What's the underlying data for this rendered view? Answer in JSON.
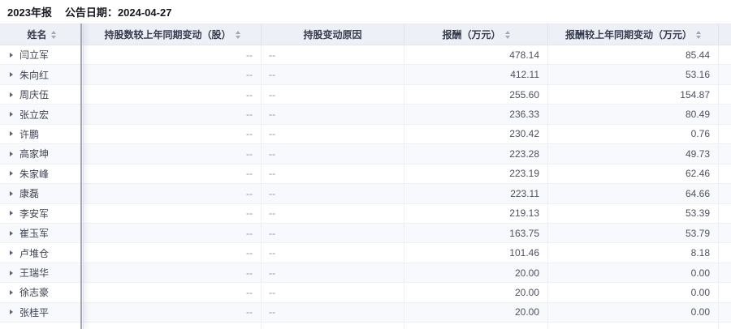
{
  "title": {
    "report": "2023年报",
    "announce_label": "公告日期：",
    "announce_date": "2024-04-27"
  },
  "table": {
    "placeholder": "--",
    "columns": [
      {
        "label": "姓名",
        "sortable": true
      },
      {
        "label": "持股数较上年同期变动（股）",
        "sortable": true
      },
      {
        "label": "持股变动原因",
        "sortable": false
      },
      {
        "label": "报酬（万元）",
        "sortable": true
      },
      {
        "label": "报酬较上年同期变动（万元）",
        "sortable": true
      }
    ],
    "rows": [
      {
        "name": "闫立军",
        "share_change": "--",
        "change_reason": "--",
        "pay": "478.14",
        "pay_change": "85.44"
      },
      {
        "name": "朱向红",
        "share_change": "--",
        "change_reason": "--",
        "pay": "412.11",
        "pay_change": "53.16"
      },
      {
        "name": "周庆伍",
        "share_change": "--",
        "change_reason": "--",
        "pay": "255.60",
        "pay_change": "154.87"
      },
      {
        "name": "张立宏",
        "share_change": "--",
        "change_reason": "--",
        "pay": "236.33",
        "pay_change": "80.49"
      },
      {
        "name": "许鹏",
        "share_change": "--",
        "change_reason": "--",
        "pay": "230.42",
        "pay_change": "0.76"
      },
      {
        "name": "高家坤",
        "share_change": "--",
        "change_reason": "--",
        "pay": "223.28",
        "pay_change": "49.73"
      },
      {
        "name": "朱家峰",
        "share_change": "--",
        "change_reason": "--",
        "pay": "223.19",
        "pay_change": "62.46"
      },
      {
        "name": "康磊",
        "share_change": "--",
        "change_reason": "--",
        "pay": "223.11",
        "pay_change": "64.66"
      },
      {
        "name": "李安军",
        "share_change": "--",
        "change_reason": "--",
        "pay": "219.13",
        "pay_change": "53.39"
      },
      {
        "name": "崔玉军",
        "share_change": "--",
        "change_reason": "--",
        "pay": "163.75",
        "pay_change": "53.79"
      },
      {
        "name": "卢堆仓",
        "share_change": "--",
        "change_reason": "--",
        "pay": "101.46",
        "pay_change": "8.18"
      },
      {
        "name": "王瑞华",
        "share_change": "--",
        "change_reason": "--",
        "pay": "20.00",
        "pay_change": "0.00"
      },
      {
        "name": "徐志豪",
        "share_change": "--",
        "change_reason": "--",
        "pay": "20.00",
        "pay_change": "0.00"
      },
      {
        "name": "张桂平",
        "share_change": "--",
        "change_reason": "--",
        "pay": "20.00",
        "pay_change": "0.00"
      }
    ]
  },
  "colors": {
    "header_bg": "#eef0f8",
    "stripe_bg": "#f8f9fc",
    "frozen_divider": "#a4a7b2"
  }
}
